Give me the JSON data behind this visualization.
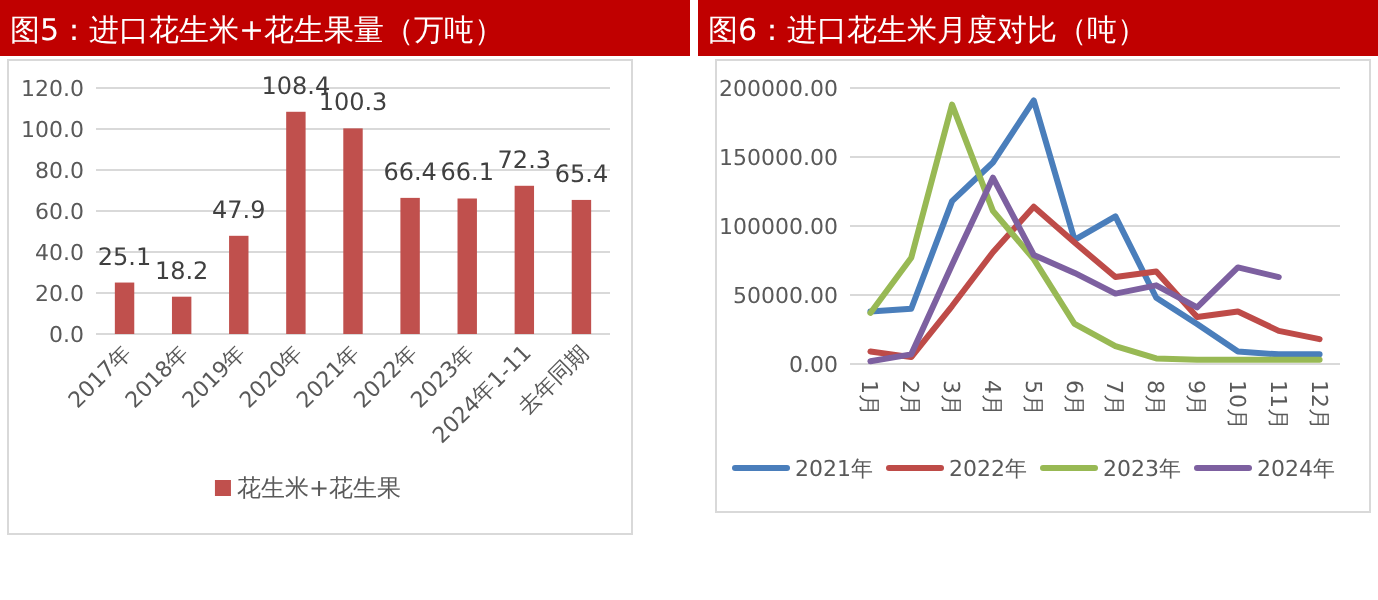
{
  "chart_data": [
    {
      "type": "bar",
      "title": "图5：进口花生米+花生果量（万吨）",
      "categories": [
        "2017年",
        "2018年",
        "2019年",
        "2020年",
        "2021年",
        "2022年",
        "2023年",
        "2024年1-11",
        "去年同期"
      ],
      "series": [
        {
          "name": "花生米+花生果",
          "color": "#c0504d",
          "values": [
            25.1,
            18.2,
            47.9,
            108.4,
            100.3,
            66.4,
            66.1,
            72.3,
            65.4
          ]
        }
      ],
      "ylim": [
        0,
        120
      ],
      "yticks": [
        {
          "value": 0,
          "label": "0.0"
        },
        {
          "value": 20,
          "label": "20.0"
        },
        {
          "value": 40,
          "label": "40.0"
        },
        {
          "value": 60,
          "label": "60.0"
        },
        {
          "value": 80,
          "label": "80.0"
        },
        {
          "value": 100,
          "label": "100.0"
        },
        {
          "value": 120,
          "label": "120.0"
        }
      ],
      "grid": "y",
      "legend": "bottom",
      "data_labels": true
    },
    {
      "type": "line",
      "title": "图6：进口花生米月度对比（吨）",
      "categories": [
        "1月",
        "2月",
        "3月",
        "4月",
        "5月",
        "6月",
        "7月",
        "8月",
        "9月",
        "10月",
        "11月",
        "12月"
      ],
      "series": [
        {
          "name": "2021年",
          "color": "#4a7ebb",
          "values": [
            38000,
            40000,
            118000,
            146000,
            191000,
            90000,
            107000,
            48000,
            29000,
            9000,
            7000,
            7000
          ]
        },
        {
          "name": "2022年",
          "color": "#be4b48",
          "values": [
            9000,
            5000,
            42000,
            81000,
            114000,
            88000,
            63000,
            67000,
            34000,
            38000,
            24000,
            18000
          ]
        },
        {
          "name": "2023年",
          "color": "#98b954",
          "values": [
            37000,
            77000,
            188000,
            111000,
            76000,
            29000,
            13000,
            4000,
            3000,
            3000,
            3000,
            3000
          ]
        },
        {
          "name": "2024年",
          "color": "#7d60a0",
          "values": [
            2000,
            7000,
            72000,
            135000,
            79000,
            66000,
            51000,
            57000,
            41000,
            70000,
            63000,
            null
          ]
        }
      ],
      "ylim": [
        0,
        200000
      ],
      "yticks": [
        {
          "value": 0,
          "label": "0.00"
        },
        {
          "value": 50000,
          "label": "50000.00"
        },
        {
          "value": 100000,
          "label": "100000.00"
        },
        {
          "value": 150000,
          "label": "150000.00"
        },
        {
          "value": 200000,
          "label": "200000.00"
        }
      ],
      "grid": "y",
      "legend": "bottom"
    }
  ]
}
